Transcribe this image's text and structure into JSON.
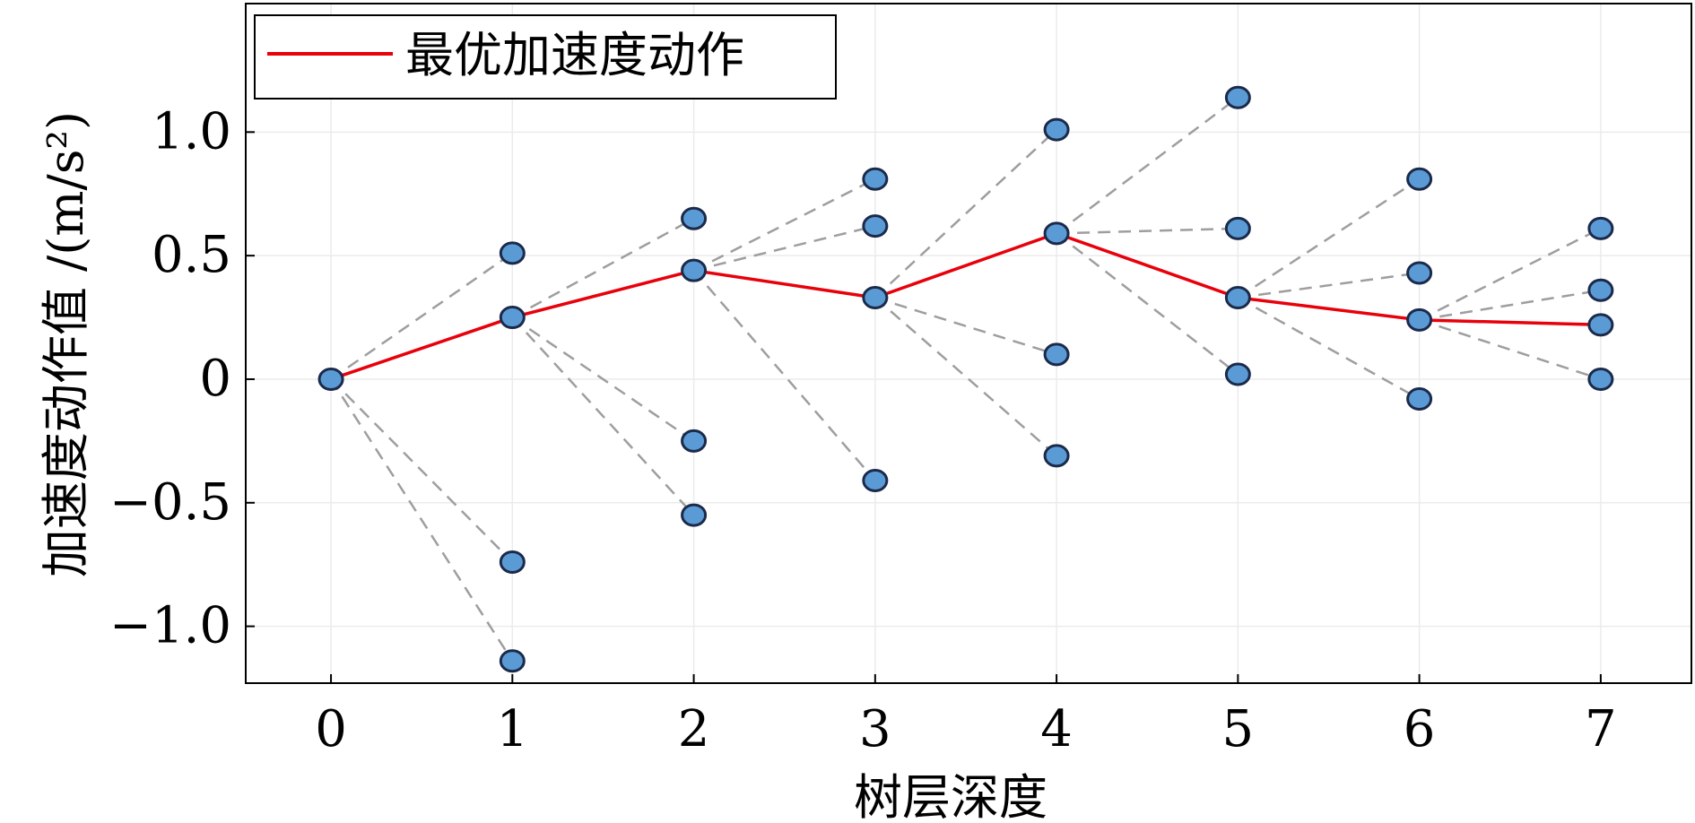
{
  "chart_data": {
    "type": "scatter",
    "xlabel": "树层深度",
    "ylabel": "加速度动作值 /(m/s²)",
    "xlim": [
      -0.47,
      7.5
    ],
    "ylim": [
      -1.23,
      1.52
    ],
    "x_ticks": [
      0,
      1,
      2,
      3,
      4,
      5,
      6,
      7
    ],
    "x_tick_labels": [
      "0",
      "1",
      "2",
      "3",
      "4",
      "5",
      "6",
      "7"
    ],
    "y_ticks": [
      -1.0,
      -0.5,
      0,
      0.5,
      1.0
    ],
    "y_tick_labels": [
      "−1.0",
      "−0.5",
      "0",
      "0.5",
      "1.0"
    ],
    "grid": true,
    "legend_position": "top-left",
    "colors": {
      "optimal_line": "#e8000b",
      "branch_line": "#9e9e9e",
      "node_fill": "#5b9bd5",
      "node_edge": "#1b2a4a",
      "axis": "#000000",
      "grid": "#ebebeb"
    },
    "series": [
      {
        "name": "最优加速度动作",
        "x": [
          0,
          1,
          2,
          3,
          4,
          5,
          6,
          7
        ],
        "y": [
          0,
          0.25,
          0.44,
          0.33,
          0.59,
          0.33,
          0.24,
          0.22
        ]
      }
    ],
    "nodes": [
      {
        "x": 0,
        "y": 0
      },
      {
        "x": 1,
        "y": 0.51
      },
      {
        "x": 1,
        "y": 0.25
      },
      {
        "x": 1,
        "y": -0.74
      },
      {
        "x": 1,
        "y": -1.14
      },
      {
        "x": 2,
        "y": 0.65
      },
      {
        "x": 2,
        "y": 0.44
      },
      {
        "x": 2,
        "y": -0.25
      },
      {
        "x": 2,
        "y": -0.55
      },
      {
        "x": 3,
        "y": 0.81
      },
      {
        "x": 3,
        "y": 0.62
      },
      {
        "x": 3,
        "y": 0.33
      },
      {
        "x": 3,
        "y": -0.41
      },
      {
        "x": 4,
        "y": 1.01
      },
      {
        "x": 4,
        "y": 0.59
      },
      {
        "x": 4,
        "y": 0.1
      },
      {
        "x": 4,
        "y": -0.31
      },
      {
        "x": 5,
        "y": 1.14
      },
      {
        "x": 5,
        "y": 0.61
      },
      {
        "x": 5,
        "y": 0.33
      },
      {
        "x": 5,
        "y": 0.02
      },
      {
        "x": 6,
        "y": 0.81
      },
      {
        "x": 6,
        "y": 0.43
      },
      {
        "x": 6,
        "y": 0.24
      },
      {
        "x": 6,
        "y": -0.08
      },
      {
        "x": 7,
        "y": 0.61
      },
      {
        "x": 7,
        "y": 0.36
      },
      {
        "x": 7,
        "y": 0.22
      },
      {
        "x": 7,
        "y": 0.0
      }
    ],
    "branches": [
      {
        "from": [
          0,
          0
        ],
        "to": [
          1,
          0.51
        ]
      },
      {
        "from": [
          0,
          0
        ],
        "to": [
          1,
          0.25
        ]
      },
      {
        "from": [
          0,
          0
        ],
        "to": [
          1,
          -0.74
        ]
      },
      {
        "from": [
          0,
          0
        ],
        "to": [
          1,
          -1.14
        ]
      },
      {
        "from": [
          1,
          0.25
        ],
        "to": [
          2,
          0.65
        ]
      },
      {
        "from": [
          1,
          0.25
        ],
        "to": [
          2,
          0.44
        ]
      },
      {
        "from": [
          1,
          0.25
        ],
        "to": [
          2,
          -0.25
        ]
      },
      {
        "from": [
          1,
          0.25
        ],
        "to": [
          2,
          -0.55
        ]
      },
      {
        "from": [
          2,
          0.44
        ],
        "to": [
          3,
          0.81
        ]
      },
      {
        "from": [
          2,
          0.44
        ],
        "to": [
          3,
          0.62
        ]
      },
      {
        "from": [
          2,
          0.44
        ],
        "to": [
          3,
          0.33
        ]
      },
      {
        "from": [
          2,
          0.44
        ],
        "to": [
          3,
          -0.41
        ]
      },
      {
        "from": [
          3,
          0.33
        ],
        "to": [
          4,
          1.01
        ]
      },
      {
        "from": [
          3,
          0.33
        ],
        "to": [
          4,
          0.59
        ]
      },
      {
        "from": [
          3,
          0.33
        ],
        "to": [
          4,
          0.1
        ]
      },
      {
        "from": [
          3,
          0.33
        ],
        "to": [
          4,
          -0.31
        ]
      },
      {
        "from": [
          4,
          0.59
        ],
        "to": [
          5,
          1.14
        ]
      },
      {
        "from": [
          4,
          0.59
        ],
        "to": [
          5,
          0.61
        ]
      },
      {
        "from": [
          4,
          0.59
        ],
        "to": [
          5,
          0.33
        ]
      },
      {
        "from": [
          4,
          0.59
        ],
        "to": [
          5,
          0.02
        ]
      },
      {
        "from": [
          5,
          0.33
        ],
        "to": [
          6,
          0.81
        ]
      },
      {
        "from": [
          5,
          0.33
        ],
        "to": [
          6,
          0.43
        ]
      },
      {
        "from": [
          5,
          0.33
        ],
        "to": [
          6,
          0.24
        ]
      },
      {
        "from": [
          5,
          0.33
        ],
        "to": [
          6,
          -0.08
        ]
      },
      {
        "from": [
          6,
          0.24
        ],
        "to": [
          7,
          0.61
        ]
      },
      {
        "from": [
          6,
          0.24
        ],
        "to": [
          7,
          0.36
        ]
      },
      {
        "from": [
          6,
          0.24
        ],
        "to": [
          7,
          0.22
        ]
      },
      {
        "from": [
          6,
          0.24
        ],
        "to": [
          7,
          0.0
        ]
      }
    ]
  }
}
